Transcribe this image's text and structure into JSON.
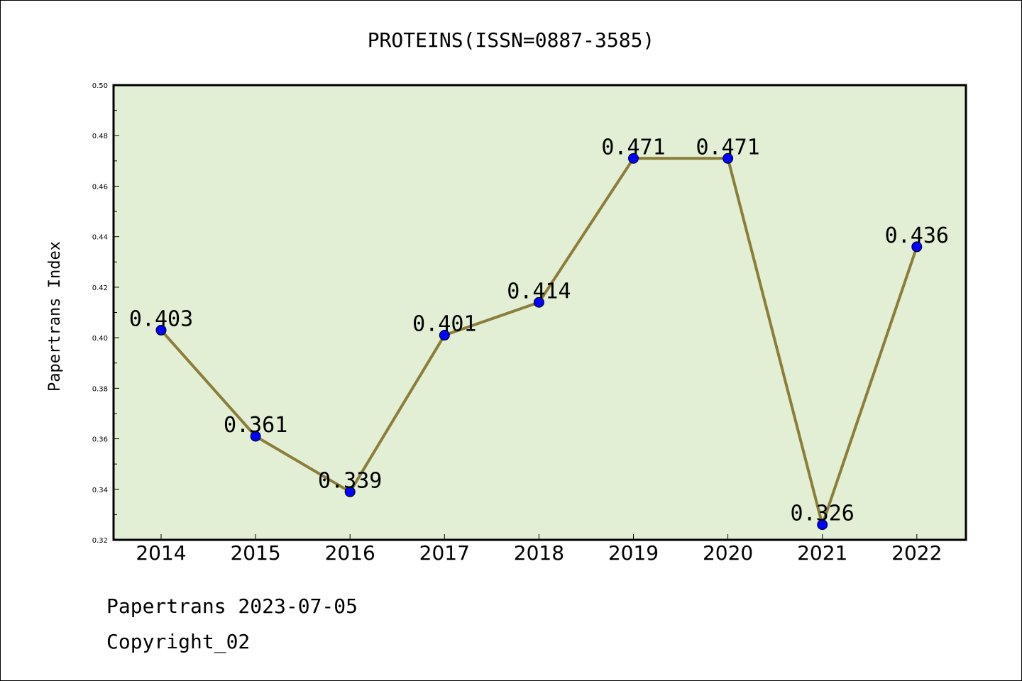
{
  "chart_data": {
    "type": "line",
    "title": "PROTEINS(ISSN=0887-3585)",
    "ylabel": "Papertrans Index",
    "xlabel": "",
    "categories": [
      "2014",
      "2015",
      "2016",
      "2017",
      "2018",
      "2019",
      "2020",
      "2021",
      "2022"
    ],
    "values": [
      0.403,
      0.361,
      0.339,
      0.401,
      0.414,
      0.471,
      0.471,
      0.326,
      0.436
    ],
    "data_labels": [
      "0.403",
      "0.361",
      "0.339",
      "0.401",
      "0.414",
      "0.471",
      "0.471",
      "0.326",
      "0.436"
    ],
    "ylim": [
      0.32,
      0.5
    ],
    "yticks": [
      "0.32",
      "0.34",
      "0.36",
      "0.38",
      "0.40",
      "0.42",
      "0.44",
      "0.46",
      "0.48",
      "0.50"
    ],
    "grid": false,
    "colors": {
      "plot_background": "#e2efd5",
      "line": "#8b7d3a",
      "marker": "#0000ff"
    }
  },
  "footer": {
    "line1": "Papertrans 2023-07-05",
    "line2": "Copyright_02"
  }
}
